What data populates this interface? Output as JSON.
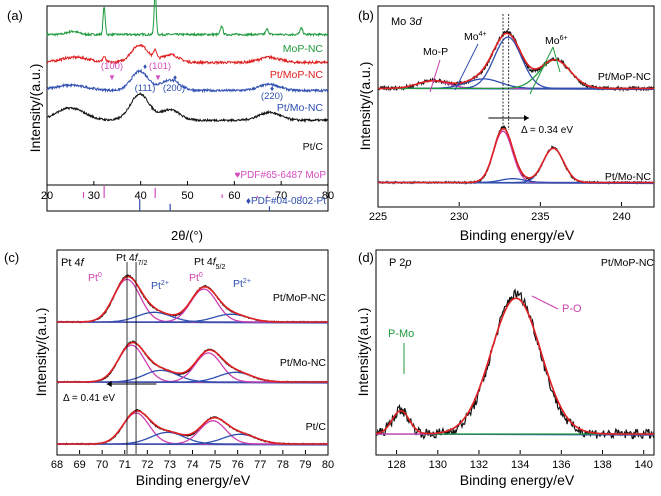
{
  "panels": [
    {
      "id": "a",
      "panel_label": "(a)",
      "chart_data": {
        "type": "line",
        "xlabel": "2θ/(°)",
        "ylabel": "Intensity/(a.u.)",
        "xlim": [
          20,
          80
        ],
        "xticks": [
          20,
          30,
          40,
          50,
          60,
          70,
          80
        ],
        "series": [
          {
            "name": "MoP-NC",
            "color": "#1e9a3c",
            "baseline": 0.86,
            "noise": 0.012,
            "peaks": [
              [
                25.5,
                0.018,
                1.2
              ],
              [
                32.2,
                0.16,
                0.22
              ],
              [
                43.1,
                0.24,
                0.22
              ],
              [
                57.3,
                0.05,
                0.25
              ],
              [
                67.0,
                0.03,
                0.3
              ],
              [
                74.3,
                0.035,
                0.3
              ]
            ]
          },
          {
            "name": "Pt/MoP-NC",
            "color": "#e02020",
            "baseline": 0.7,
            "noise": 0.014,
            "peaks": [
              [
                26.0,
                0.03,
                3.0
              ],
              [
                32.2,
                0.03,
                0.3
              ],
              [
                39.8,
                0.1,
                1.8
              ],
              [
                43.1,
                0.05,
                0.3
              ],
              [
                46.3,
                0.045,
                1.8
              ],
              [
                67.5,
                0.03,
                2.2
              ]
            ]
          },
          {
            "name": "Pt/Mo-NC",
            "color": "#2f4fb0",
            "baseline": 0.54,
            "noise": 0.013,
            "peaks": [
              [
                25.0,
                0.03,
                3.5
              ],
              [
                39.8,
                0.11,
                1.8
              ],
              [
                46.3,
                0.06,
                2.0
              ],
              [
                67.5,
                0.035,
                2.2
              ]
            ]
          },
          {
            "name": "Pt/C",
            "color": "#111111",
            "baseline": 0.37,
            "noise": 0.012,
            "peaks": [
              [
                25.0,
                0.07,
                3.0
              ],
              [
                39.8,
                0.15,
                2.0
              ],
              [
                46.3,
                0.06,
                2.0
              ],
              [
                67.5,
                0.045,
                2.3
              ]
            ]
          }
        ],
        "reference_patterns": [
          {
            "name": "PDF#65-6487 MoP",
            "color": "#d44bbf",
            "lines": [
              [
                27.8,
                0.5
              ],
              [
                32.2,
                1.0
              ],
              [
                43.1,
                0.85
              ],
              [
                57.4,
                0.3
              ],
              [
                64.9,
                0.18
              ],
              [
                67.0,
                0.22
              ],
              [
                74.3,
                0.2
              ]
            ]
          },
          {
            "name": "PDF#04-0802-Pt",
            "color": "#2f4fb0",
            "lines": [
              [
                39.8,
                1.0
              ],
              [
                46.3,
                0.6
              ],
              [
                67.5,
                0.4
              ]
            ]
          }
        ],
        "annotations": [
          "(100)",
          "(101)",
          "(111)",
          "(200)",
          "(220)"
        ]
      }
    },
    {
      "id": "b",
      "panel_label": "(b)",
      "chart_data": {
        "type": "line",
        "title": "Mo 3d",
        "xlabel": "Binding energy/eV",
        "ylabel": "Intensity/(a.u.)",
        "xlim": [
          225,
          242
        ],
        "xticks": [
          225,
          230,
          235,
          240
        ],
        "series": [
          {
            "name": "Pt/MoP-NC",
            "color": "#111111",
            "baseline": 0.6,
            "noise": 0.02,
            "peaks": [
              [
                228.4,
                0.04,
                0.9
              ],
              [
                231.5,
                0.05,
                1.0
              ],
              [
                233.0,
                0.27,
                0.8
              ],
              [
                235.9,
                0.15,
                0.9
              ]
            ]
          },
          {
            "name": "Pt/Mo-NC",
            "color": "#111111",
            "baseline": 0.12,
            "noise": 0.01,
            "peaks": [
              [
                232.7,
                0.27,
                0.55
              ],
              [
                233.3,
                0.02,
                0.7
              ],
              [
                235.8,
                0.18,
                0.6
              ]
            ]
          }
        ],
        "annotations": [
          "Mo-P",
          "Mo⁴⁺",
          "Mo⁶⁺",
          "Δ = 0.34 eV"
        ]
      }
    },
    {
      "id": "c",
      "panel_label": "(c)",
      "chart_data": {
        "type": "line",
        "title": "Pt 4f",
        "xlabel": "Binding energy/eV",
        "ylabel": "Intensity/(a.u.)",
        "xlim": [
          68,
          80
        ],
        "xticks": [
          68,
          69,
          70,
          71,
          72,
          73,
          74,
          75,
          76,
          77,
          78,
          79,
          80
        ],
        "series": [
          {
            "name": "Pt/MoP-NC",
            "color": "#111111",
            "baseline": 0.66,
            "noise": 0.006,
            "peaks": [
              [
                71.1,
                0.22,
                0.55
              ],
              [
                72.3,
                0.05,
                0.7
              ],
              [
                74.5,
                0.17,
                0.55
              ],
              [
                75.7,
                0.04,
                0.7
              ]
            ]
          },
          {
            "name": "Pt/Mo-NC",
            "color": "#111111",
            "baseline": 0.36,
            "noise": 0.006,
            "peaks": [
              [
                71.3,
                0.19,
                0.55
              ],
              [
                72.6,
                0.06,
                0.7
              ],
              [
                74.7,
                0.15,
                0.55
              ],
              [
                75.9,
                0.05,
                0.7
              ]
            ]
          },
          {
            "name": "Pt/C",
            "color": "#111111",
            "baseline": 0.05,
            "noise": 0.006,
            "peaks": [
              [
                71.5,
                0.16,
                0.55
              ],
              [
                72.9,
                0.06,
                0.7
              ],
              [
                74.9,
                0.12,
                0.55
              ],
              [
                76.1,
                0.05,
                0.7
              ]
            ]
          }
        ],
        "annotations": [
          "Pt 4f7/2",
          "Pt 4f5/2",
          "Pt⁰",
          "Pt²⁺",
          "Δ = 0.41 eV"
        ]
      }
    },
    {
      "id": "d",
      "panel_label": "(d)",
      "chart_data": {
        "type": "line",
        "title": "P 2p",
        "xlabel": "Binding energy/eV",
        "ylabel": "Intensity/(a.u.)",
        "xlim": [
          127,
          140.5
        ],
        "xticks": [
          128,
          130,
          132,
          134,
          136,
          138,
          140
        ],
        "series": [
          {
            "name": "Pt/MoP-NC",
            "color": "#111111",
            "baseline": 0.1,
            "noise": 0.05,
            "peaks": [
              [
                128.2,
                0.12,
                0.4
              ],
              [
                133.8,
                0.7,
                1.15
              ]
            ]
          }
        ],
        "annotations": [
          "P-Mo",
          "P-O"
        ]
      }
    }
  ],
  "texts": {
    "a": {
      "label": "(a)",
      "ylabel": "Intensity/(a.u.)",
      "xlabel": "2θ/(°)",
      "ticks": [
        "20",
        "30",
        "40",
        "50",
        "60",
        "70",
        "80"
      ],
      "series": [
        "MoP-NC",
        "Pt/MoP-NC",
        "Pt/Mo-NC",
        "Pt/C"
      ],
      "hkl_100": "(100)",
      "hkl_101": "(101)",
      "hkl_111": "(111)",
      "hkl_200": "(200)",
      "hkl_220": "(220)",
      "ref1": "PDF#65-6487 MoP",
      "ref2": "PDF#04-0802-Pt"
    },
    "b": {
      "label": "(b)",
      "title": "Mo 3",
      "title_italic": "d",
      "ylabel": "Intensity/(a.u.)",
      "xlabel": "Binding energy/eV",
      "ticks": [
        "225",
        "230",
        "235",
        "240"
      ],
      "mop": "Mo-P",
      "mo4": "Mo",
      "mo4_sup": "4+",
      "mo6": "Mo",
      "mo6_sup": "6+",
      "delta": "Δ = 0.34 eV",
      "s1": "Pt/MoP-NC",
      "s2": "Pt/Mo-NC"
    },
    "c": {
      "label": "(c)",
      "title": "Pt 4",
      "title_italic": "f",
      "ylabel": "Intensity/(a.u.)",
      "xlabel": "Binding energy/eV",
      "ticks": [
        "68",
        "69",
        "70",
        "71",
        "72",
        "73",
        "74",
        "75",
        "76",
        "77",
        "78",
        "79",
        "80"
      ],
      "pt_a": "Pt 4",
      "pt_a_f": "f",
      "pt_a_sub": "7/2",
      "pt_b": "Pt 4",
      "pt_b_f": "f",
      "pt_b_sub": "5/2",
      "pt0": "Pt",
      "pt0_sup": "0",
      "pt2": "Pt",
      "pt2_sup": "2+",
      "delta": "Δ = 0.41 eV",
      "s1": "Pt/MoP-NC",
      "s2": "Pt/Mo-NC",
      "s3": "Pt/C"
    },
    "d": {
      "label": "(d)",
      "title": "P 2",
      "title_italic": "p",
      "ylabel": "Intensity/(a.u.)",
      "xlabel": "Binding energy/eV",
      "ticks": [
        "128",
        "130",
        "132",
        "134",
        "136",
        "138",
        "140"
      ],
      "sample": "Pt/MoP-NC",
      "pmo": "P-Mo",
      "po": "P-O"
    }
  },
  "colors": {
    "green": "#1e9a3c",
    "red": "#e02020",
    "blue": "#2f4fb0",
    "magenta": "#d44bbf",
    "black": "#111111",
    "fit_red": "#e02020",
    "fit_blue": "#2f4fb0",
    "fit_green": "#1e9a3c",
    "fit_magenta": "#cc3fb0",
    "fit_base": "#3a4fa8"
  }
}
